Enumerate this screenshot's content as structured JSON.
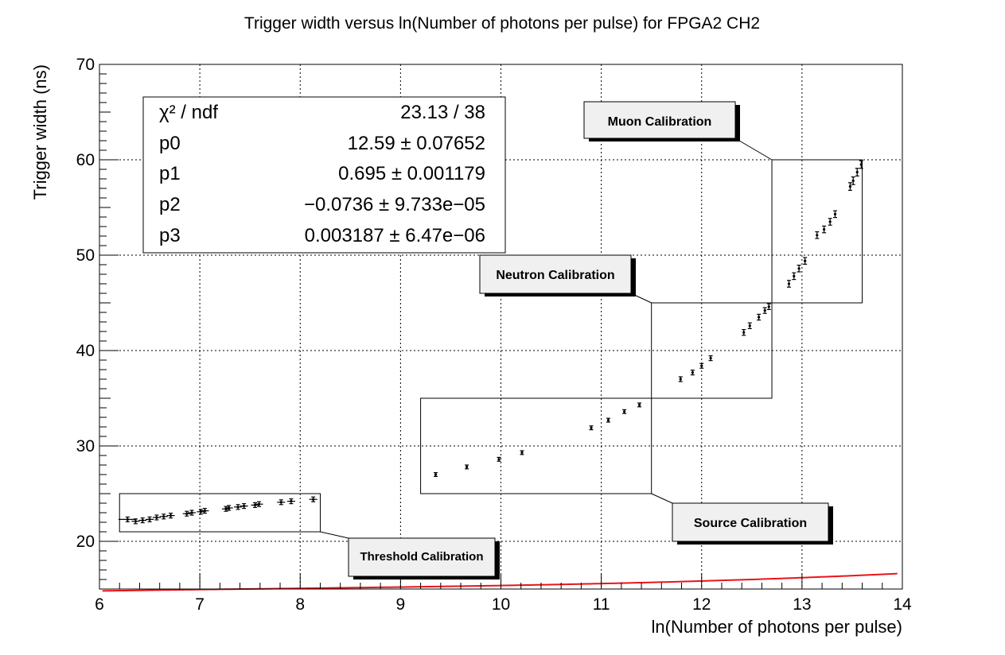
{
  "chart_data": {
    "type": "scatter",
    "title": "Trigger width versus ln(Number of photons per pulse) for FPGA2 CH2",
    "xlabel": "ln(Number of photons per pulse)",
    "ylabel": "Trigger width (ns)",
    "xlim": [
      6,
      14
    ],
    "ylim": [
      15,
      70
    ],
    "x_ticks": [
      6,
      7,
      8,
      9,
      10,
      11,
      12,
      13,
      14
    ],
    "y_ticks": [
      20,
      30,
      40,
      50,
      60,
      70
    ],
    "x_tick_labels": [
      "6",
      "7",
      "8",
      "9",
      "10",
      "11",
      "12",
      "13",
      "14"
    ],
    "y_tick_labels": [
      "20",
      "30",
      "40",
      "50",
      "60",
      "70"
    ],
    "grid": true,
    "fit": {
      "function": "cubic polynomial",
      "x_range": [
        6.03,
        13.95
      ],
      "params": [
        12.59,
        0.695,
        -0.0736,
        0.003187
      ],
      "color": "#e8141a"
    },
    "stats_box": {
      "rows": [
        {
          "label": "χ² / ndf",
          "value": "23.13 / 38"
        },
        {
          "label": "p0",
          "value": "12.59 ± 0.07652"
        },
        {
          "label": "p1",
          "value": "0.695 ± 0.001179"
        },
        {
          "label": "p2",
          "value": "−0.0736 ± 9.733e−05"
        },
        {
          "label": "p3",
          "value": "0.003187 ± 6.47e−06"
        }
      ]
    },
    "regions": [
      {
        "name": "threshold",
        "label": "Threshold Calibration",
        "x_range": [
          6.2,
          8.2
        ],
        "y_range": [
          21,
          25
        ]
      },
      {
        "name": "source",
        "label": "Source Calibration",
        "x_range": [
          9.2,
          11.5
        ],
        "y_range": [
          25,
          35
        ]
      },
      {
        "name": "neutron",
        "label": "Neutron Calibration",
        "x_range": [
          11.5,
          12.7
        ],
        "y_range": [
          35,
          45
        ]
      },
      {
        "name": "muon",
        "label": "Muon Calibration",
        "x_range": [
          12.7,
          13.6
        ],
        "y_range": [
          45,
          60
        ]
      }
    ],
    "series": [
      {
        "x": [
          6.28,
          6.36,
          6.43,
          6.5,
          6.57,
          6.64,
          6.71,
          6.87,
          6.92,
          7.01,
          7.05,
          7.26,
          7.29,
          7.38,
          7.44,
          7.55,
          7.59,
          7.81,
          7.91,
          8.13,
          9.35,
          9.66,
          9.98,
          10.21,
          10.9,
          11.07,
          11.23,
          11.38,
          11.79,
          11.91,
          12.0,
          12.09,
          12.42,
          12.48,
          12.57,
          12.63,
          12.67,
          12.87,
          12.92,
          12.97,
          13.03,
          13.15,
          13.22,
          13.28,
          13.33,
          13.48,
          13.51,
          13.55,
          13.59
        ],
        "y": [
          22.3,
          22.1,
          22.2,
          22.3,
          22.5,
          22.6,
          22.7,
          22.9,
          23.0,
          23.1,
          23.2,
          23.4,
          23.5,
          23.6,
          23.7,
          23.8,
          23.9,
          24.1,
          24.2,
          24.4,
          27.0,
          27.8,
          28.6,
          29.3,
          31.9,
          32.7,
          33.6,
          34.3,
          37.0,
          37.7,
          38.4,
          39.2,
          41.9,
          42.6,
          43.5,
          44.2,
          44.6,
          47.0,
          47.8,
          48.6,
          49.4,
          52.1,
          52.7,
          53.5,
          54.3,
          57.2,
          57.8,
          58.7,
          59.5
        ],
        "yerr": [
          0.25,
          0.25,
          0.25,
          0.25,
          0.25,
          0.25,
          0.25,
          0.25,
          0.25,
          0.25,
          0.25,
          0.25,
          0.25,
          0.25,
          0.25,
          0.25,
          0.25,
          0.25,
          0.25,
          0.25,
          0.2,
          0.2,
          0.2,
          0.2,
          0.2,
          0.2,
          0.2,
          0.2,
          0.25,
          0.25,
          0.25,
          0.25,
          0.3,
          0.3,
          0.3,
          0.3,
          0.3,
          0.35,
          0.35,
          0.35,
          0.35,
          0.35,
          0.35,
          0.35,
          0.35,
          0.4,
          0.4,
          0.4,
          0.4
        ],
        "xerr": [
          0.09,
          0.04,
          0.04,
          0.04,
          0.04,
          0.04,
          0.04,
          0.04,
          0.04,
          0.04,
          0.04,
          0.04,
          0.04,
          0.04,
          0.04,
          0.04,
          0.04,
          0.04,
          0.04,
          0.04,
          0.01,
          0.01,
          0.01,
          0.01,
          0.01,
          0.01,
          0.01,
          0.01,
          0.01,
          0.01,
          0.01,
          0.01,
          0.01,
          0.01,
          0.01,
          0.01,
          0.01,
          0.01,
          0.01,
          0.01,
          0.01,
          0.01,
          0.01,
          0.01,
          0.01,
          0.01,
          0.01,
          0.01,
          0.01
        ]
      }
    ]
  }
}
